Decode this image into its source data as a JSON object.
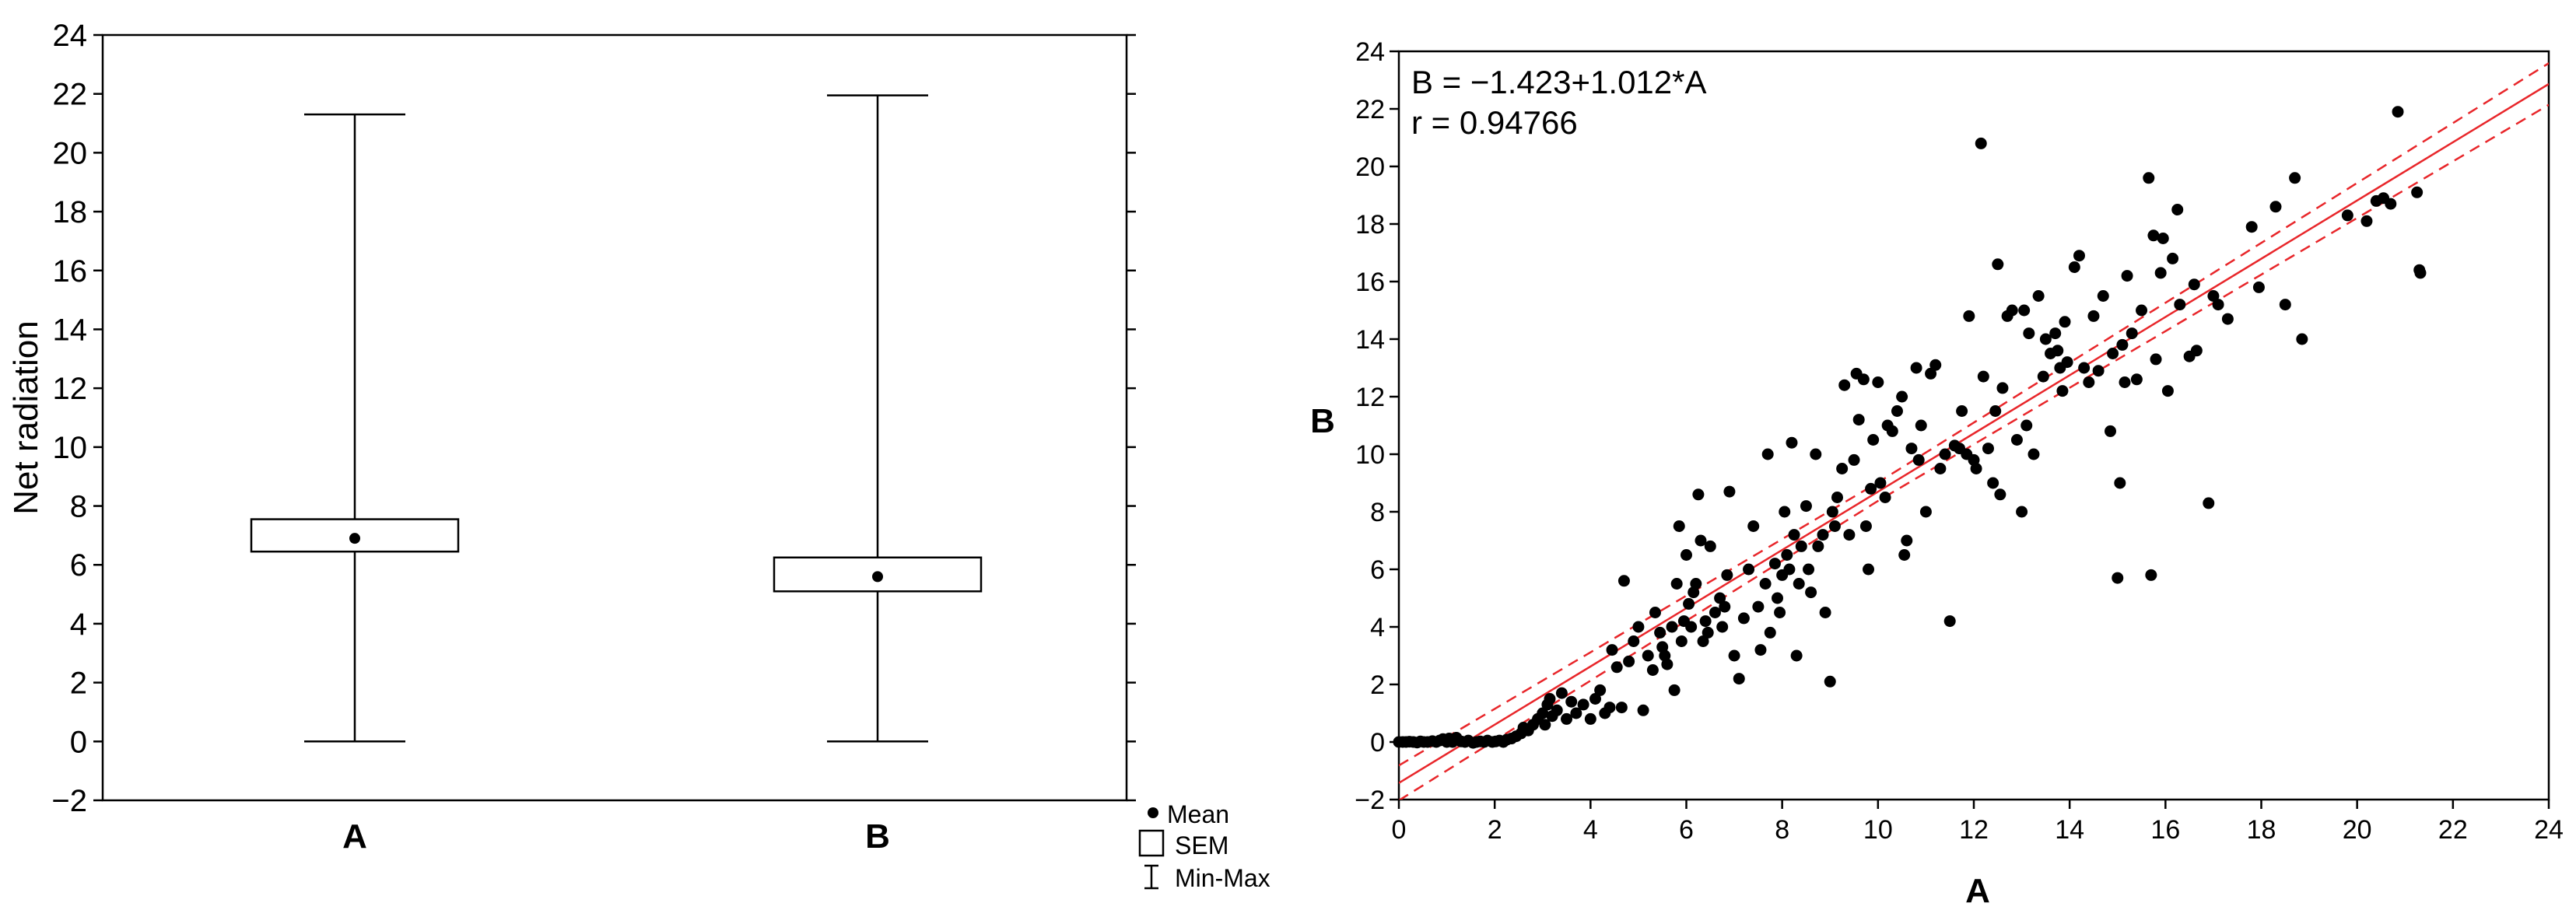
{
  "chart_data": [
    {
      "type": "box",
      "title": "",
      "xlabel": "",
      "ylabel": "Net radiation",
      "ylim": [
        -2,
        24
      ],
      "yticks": [
        -2,
        0,
        2,
        4,
        6,
        8,
        10,
        12,
        14,
        16,
        18,
        20,
        22,
        24
      ],
      "ytick_labels": [
        "−2",
        "0",
        "2",
        "4",
        "6",
        "8",
        "10",
        "12",
        "14",
        "16",
        "18",
        "20",
        "22",
        "24"
      ],
      "categories": [
        "A",
        "B"
      ],
      "boxes": [
        {
          "name": "A",
          "mean": 6.9,
          "sem_low": 6.45,
          "sem_high": 7.55,
          "min": 0,
          "max": 21.3
        },
        {
          "name": "B",
          "mean": 5.6,
          "sem_low": 5.1,
          "sem_high": 6.25,
          "min": 0,
          "max": 21.95
        }
      ],
      "legend": [
        "Mean",
        "SEM",
        "Min-Max"
      ],
      "legend_position": "bottom-right",
      "grid": false
    },
    {
      "type": "scatter",
      "title": "",
      "xlabel": "A",
      "ylabel": "B",
      "xlim": [
        0,
        24
      ],
      "ylim": [
        -2,
        24
      ],
      "xticks": [
        0,
        2,
        4,
        6,
        8,
        10,
        12,
        14,
        16,
        18,
        20,
        22,
        24
      ],
      "xtick_labels": [
        "0",
        "2",
        "4",
        "6",
        "8",
        "10",
        "12",
        "14",
        "16",
        "18",
        "20",
        "22",
        "24"
      ],
      "yticks": [
        -2,
        0,
        2,
        4,
        6,
        8,
        10,
        12,
        14,
        16,
        18,
        20,
        22,
        24
      ],
      "ytick_labels": [
        "−2",
        "0",
        "2",
        "4",
        "6",
        "8",
        "10",
        "12",
        "14",
        "16",
        "18",
        "20",
        "22",
        "24"
      ],
      "annotations": [
        "B = −1.423+1.012*A",
        "r = 0.94766"
      ],
      "fit": {
        "intercept": -1.423,
        "slope": 1.012,
        "r": 0.94766
      },
      "line_color": "#e8262a",
      "grid": false,
      "points": [
        [
          0.0,
          0.0
        ],
        [
          0.08,
          0.0
        ],
        [
          0.15,
          0.0
        ],
        [
          0.22,
          0.01
        ],
        [
          0.3,
          0.0
        ],
        [
          0.38,
          -0.02
        ],
        [
          0.45,
          0.02
        ],
        [
          0.52,
          0.0
        ],
        [
          0.6,
          0.0
        ],
        [
          0.7,
          0.03
        ],
        [
          0.78,
          0.0
        ],
        [
          0.85,
          0.05
        ],
        [
          0.92,
          0.1
        ],
        [
          1.0,
          0.0
        ],
        [
          1.05,
          0.12
        ],
        [
          1.12,
          0.0
        ],
        [
          1.2,
          0.15
        ],
        [
          1.3,
          0.02
        ],
        [
          1.38,
          0.0
        ],
        [
          1.45,
          0.05
        ],
        [
          1.55,
          -0.03
        ],
        [
          1.62,
          0.0
        ],
        [
          1.7,
          0.02
        ],
        [
          1.78,
          0.0
        ],
        [
          1.85,
          0.05
        ],
        [
          1.95,
          0.0
        ],
        [
          2.02,
          0.02
        ],
        [
          2.1,
          0.05
        ],
        [
          2.18,
          0.0
        ],
        [
          2.25,
          0.08
        ],
        [
          2.35,
          0.12
        ],
        [
          2.45,
          0.2
        ],
        [
          2.55,
          0.3
        ],
        [
          2.6,
          0.5
        ],
        [
          2.7,
          0.4
        ],
        [
          2.8,
          0.6
        ],
        [
          2.9,
          0.8
        ],
        [
          3.0,
          1.0
        ],
        [
          3.05,
          0.6
        ],
        [
          3.1,
          1.3
        ],
        [
          3.15,
          1.5
        ],
        [
          3.2,
          0.9
        ],
        [
          3.3,
          1.1
        ],
        [
          3.4,
          1.7
        ],
        [
          3.5,
          0.8
        ],
        [
          3.6,
          1.4
        ],
        [
          3.7,
          1.0
        ],
        [
          3.85,
          1.3
        ],
        [
          4.0,
          0.8
        ],
        [
          4.1,
          1.5
        ],
        [
          4.2,
          1.8
        ],
        [
          4.3,
          1.0
        ],
        [
          4.4,
          1.2
        ],
        [
          4.45,
          3.2
        ],
        [
          4.55,
          2.6
        ],
        [
          4.65,
          1.2
        ],
        [
          4.7,
          5.6
        ],
        [
          4.8,
          2.8
        ],
        [
          4.9,
          3.5
        ],
        [
          5.0,
          4.0
        ],
        [
          5.1,
          1.1
        ],
        [
          5.2,
          3.0
        ],
        [
          5.3,
          2.5
        ],
        [
          5.35,
          4.5
        ],
        [
          5.45,
          3.8
        ],
        [
          5.5,
          3.3
        ],
        [
          5.55,
          3.0
        ],
        [
          5.6,
          2.7
        ],
        [
          5.7,
          4.0
        ],
        [
          5.75,
          1.8
        ],
        [
          5.8,
          5.5
        ],
        [
          5.85,
          7.5
        ],
        [
          5.9,
          3.5
        ],
        [
          5.95,
          4.2
        ],
        [
          6.0,
          6.5
        ],
        [
          6.05,
          4.8
        ],
        [
          6.1,
          4.0
        ],
        [
          6.15,
          5.2
        ],
        [
          6.2,
          5.5
        ],
        [
          6.25,
          8.6
        ],
        [
          6.3,
          7.0
        ],
        [
          6.35,
          3.5
        ],
        [
          6.4,
          4.2
        ],
        [
          6.45,
          3.8
        ],
        [
          6.5,
          6.8
        ],
        [
          6.6,
          4.5
        ],
        [
          6.7,
          5.0
        ],
        [
          6.75,
          4.0
        ],
        [
          6.8,
          4.7
        ],
        [
          6.85,
          5.8
        ],
        [
          6.9,
          8.7
        ],
        [
          7.0,
          3.0
        ],
        [
          7.1,
          2.2
        ],
        [
          7.2,
          4.3
        ],
        [
          7.3,
          6.0
        ],
        [
          7.4,
          7.5
        ],
        [
          7.5,
          4.7
        ],
        [
          7.55,
          3.2
        ],
        [
          7.65,
          5.5
        ],
        [
          7.7,
          10.0
        ],
        [
          7.75,
          3.8
        ],
        [
          7.85,
          6.2
        ],
        [
          7.9,
          5.0
        ],
        [
          7.95,
          4.5
        ],
        [
          8.0,
          5.8
        ],
        [
          8.05,
          8.0
        ],
        [
          8.1,
          6.5
        ],
        [
          8.15,
          6.0
        ],
        [
          8.2,
          10.4
        ],
        [
          8.25,
          7.2
        ],
        [
          8.3,
          3.0
        ],
        [
          8.35,
          5.5
        ],
        [
          8.4,
          6.8
        ],
        [
          8.5,
          8.2
        ],
        [
          8.55,
          6.0
        ],
        [
          8.6,
          5.2
        ],
        [
          8.7,
          10.0
        ],
        [
          8.75,
          6.8
        ],
        [
          8.85,
          7.2
        ],
        [
          8.9,
          4.5
        ],
        [
          9.0,
          2.1
        ],
        [
          9.05,
          8.0
        ],
        [
          9.1,
          7.5
        ],
        [
          9.15,
          8.5
        ],
        [
          9.25,
          9.5
        ],
        [
          9.3,
          12.4
        ],
        [
          9.4,
          7.2
        ],
        [
          9.5,
          9.8
        ],
        [
          9.55,
          12.8
        ],
        [
          9.6,
          11.2
        ],
        [
          9.7,
          12.6
        ],
        [
          9.75,
          7.5
        ],
        [
          9.8,
          6.0
        ],
        [
          9.85,
          8.8
        ],
        [
          9.9,
          10.5
        ],
        [
          10.0,
          12.5
        ],
        [
          10.05,
          9.0
        ],
        [
          10.15,
          8.5
        ],
        [
          10.2,
          11.0
        ],
        [
          10.3,
          10.8
        ],
        [
          10.4,
          11.5
        ],
        [
          10.5,
          12.0
        ],
        [
          10.55,
          6.5
        ],
        [
          10.6,
          7.0
        ],
        [
          10.7,
          10.2
        ],
        [
          10.8,
          13.0
        ],
        [
          10.85,
          9.8
        ],
        [
          10.9,
          11.0
        ],
        [
          11.0,
          8.0
        ],
        [
          11.1,
          12.8
        ],
        [
          11.2,
          13.1
        ],
        [
          11.3,
          9.5
        ],
        [
          11.4,
          10.0
        ],
        [
          11.5,
          4.2
        ],
        [
          11.6,
          10.3
        ],
        [
          11.7,
          10.2
        ],
        [
          11.75,
          11.5
        ],
        [
          11.85,
          10.0
        ],
        [
          11.9,
          14.8
        ],
        [
          12.0,
          9.8
        ],
        [
          12.05,
          9.5
        ],
        [
          12.15,
          20.8
        ],
        [
          12.2,
          12.7
        ],
        [
          12.3,
          10.2
        ],
        [
          12.4,
          9.0
        ],
        [
          12.45,
          11.5
        ],
        [
          12.5,
          16.6
        ],
        [
          12.55,
          8.6
        ],
        [
          12.6,
          12.3
        ],
        [
          12.7,
          14.8
        ],
        [
          12.8,
          15.0
        ],
        [
          12.9,
          10.5
        ],
        [
          13.0,
          8.0
        ],
        [
          13.05,
          15.0
        ],
        [
          13.1,
          11.0
        ],
        [
          13.15,
          14.2
        ],
        [
          13.25,
          10.0
        ],
        [
          13.35,
          15.5
        ],
        [
          13.45,
          12.7
        ],
        [
          13.5,
          14.0
        ],
        [
          13.6,
          13.5
        ],
        [
          13.7,
          14.2
        ],
        [
          13.75,
          13.6
        ],
        [
          13.8,
          13.0
        ],
        [
          13.85,
          12.2
        ],
        [
          13.9,
          14.6
        ],
        [
          13.95,
          13.2
        ],
        [
          14.1,
          16.5
        ],
        [
          14.2,
          16.9
        ],
        [
          14.3,
          13.0
        ],
        [
          14.4,
          12.5
        ],
        [
          14.5,
          14.8
        ],
        [
          14.6,
          12.9
        ],
        [
          14.7,
          15.5
        ],
        [
          14.85,
          10.8
        ],
        [
          14.9,
          13.5
        ],
        [
          15.0,
          5.7
        ],
        [
          15.05,
          9.0
        ],
        [
          15.1,
          13.8
        ],
        [
          15.15,
          12.5
        ],
        [
          15.2,
          16.2
        ],
        [
          15.3,
          14.2
        ],
        [
          15.4,
          12.6
        ],
        [
          15.5,
          15.0
        ],
        [
          15.65,
          19.6
        ],
        [
          15.7,
          5.8
        ],
        [
          15.75,
          17.6
        ],
        [
          15.8,
          13.3
        ],
        [
          15.9,
          16.3
        ],
        [
          15.95,
          17.5
        ],
        [
          16.05,
          12.2
        ],
        [
          16.15,
          16.8
        ],
        [
          16.25,
          18.5
        ],
        [
          16.3,
          15.2
        ],
        [
          16.5,
          13.4
        ],
        [
          16.6,
          15.9
        ],
        [
          16.65,
          13.6
        ],
        [
          16.9,
          8.3
        ],
        [
          17.0,
          15.5
        ],
        [
          17.1,
          15.2
        ],
        [
          17.3,
          14.7
        ],
        [
          17.8,
          17.9
        ],
        [
          17.95,
          15.8
        ],
        [
          18.3,
          18.6
        ],
        [
          18.5,
          15.2
        ],
        [
          18.7,
          19.6
        ],
        [
          18.85,
          14.0
        ],
        [
          19.8,
          18.3
        ],
        [
          20.2,
          18.1
        ],
        [
          20.4,
          18.8
        ],
        [
          20.55,
          18.9
        ],
        [
          20.7,
          18.7
        ],
        [
          20.85,
          21.9
        ],
        [
          21.25,
          19.1
        ],
        [
          21.3,
          16.4
        ],
        [
          21.32,
          16.3
        ]
      ]
    }
  ]
}
